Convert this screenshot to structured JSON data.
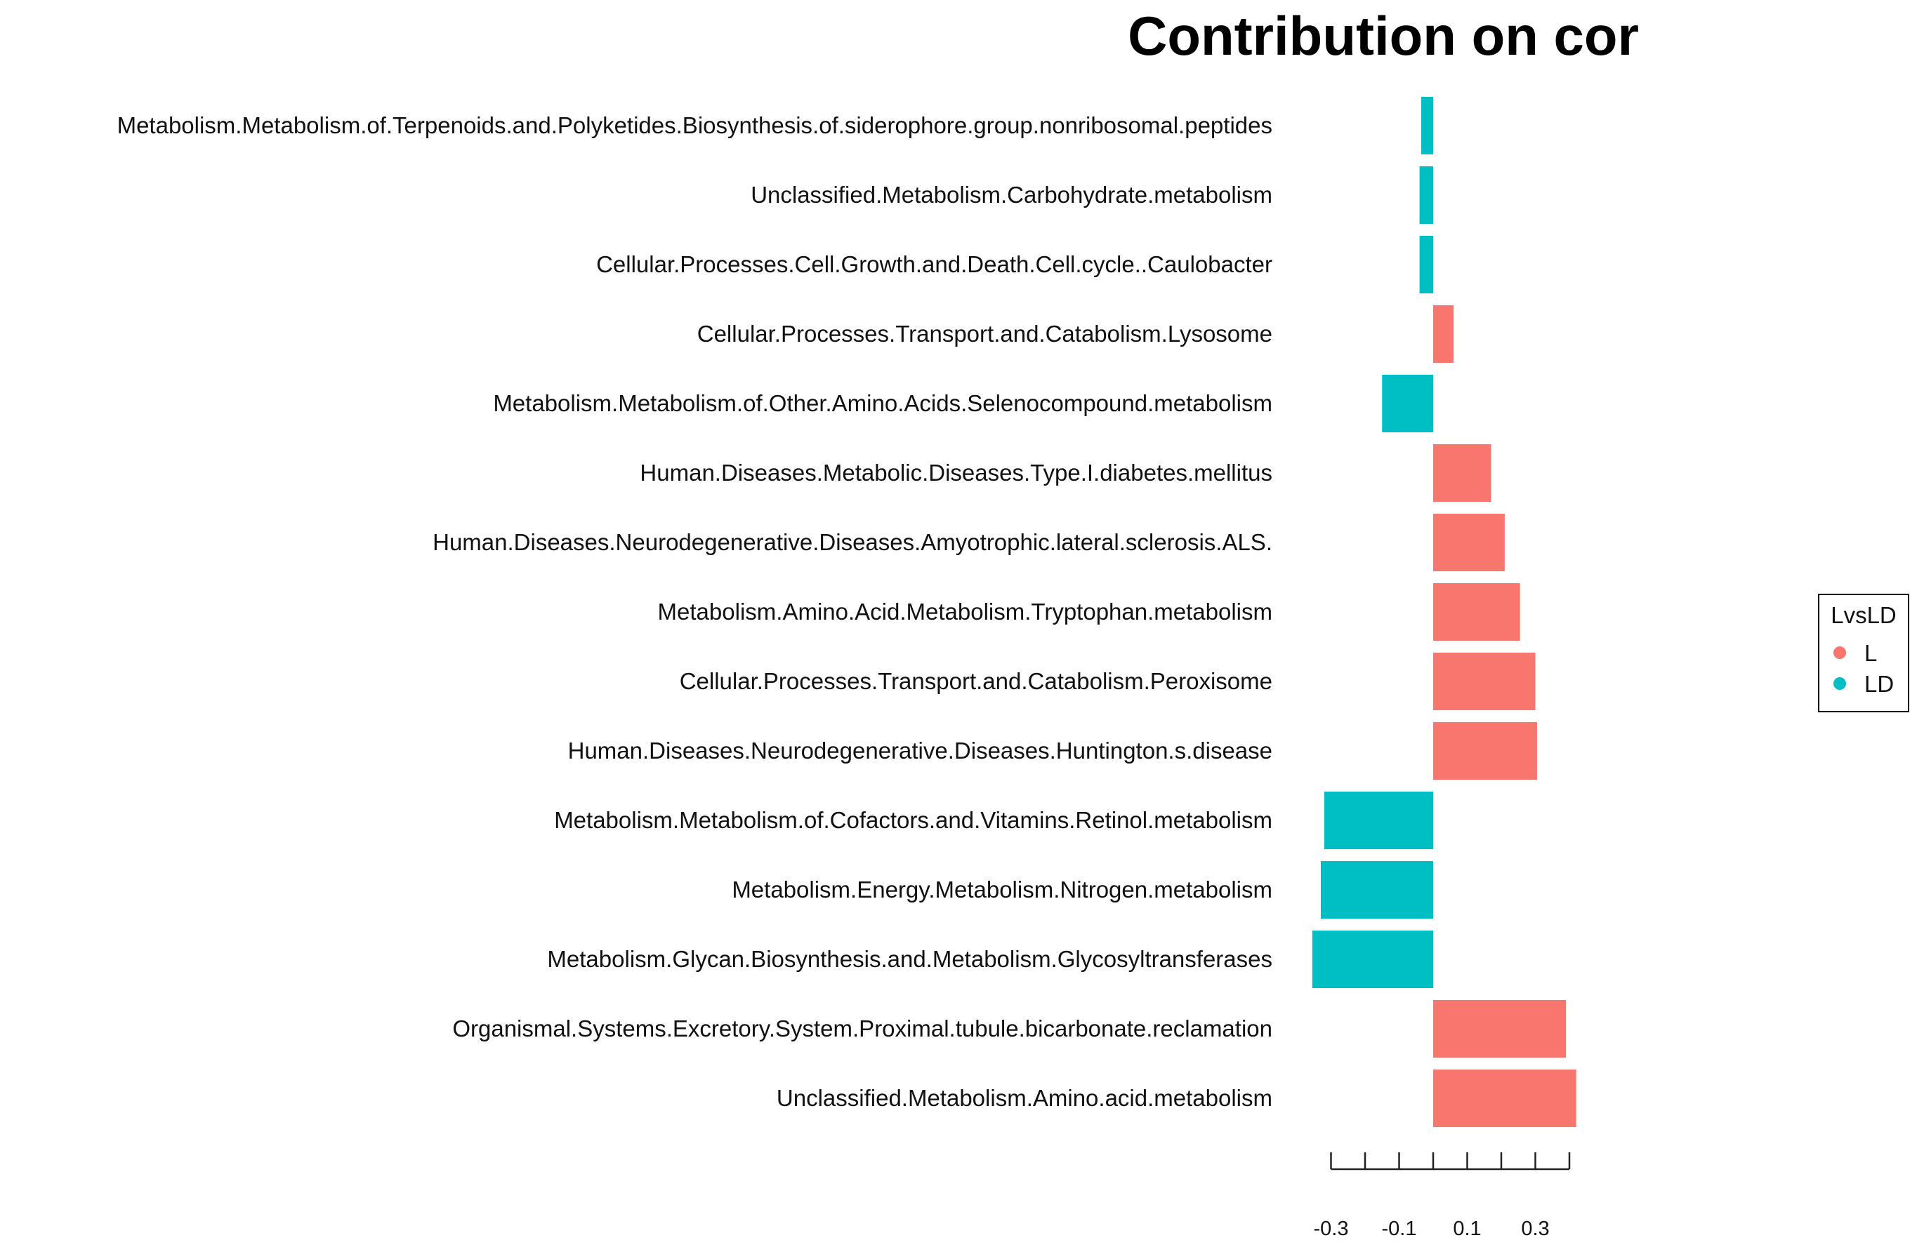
{
  "chart_data": {
    "type": "bar",
    "orientation": "horizontal",
    "title": "Contribution on cor",
    "xlabel": "",
    "ylabel": "",
    "xlim": [
      -0.32,
      0.4
    ],
    "ticks": [
      -0.3,
      -0.2,
      -0.1,
      0.0,
      0.1,
      0.2,
      0.3,
      0.4
    ],
    "tick_labels": [
      {
        "value": -0.3,
        "label": "-0.3"
      },
      {
        "value": -0.1,
        "label": "-0.1"
      },
      {
        "value": 0.1,
        "label": "0.1"
      },
      {
        "value": 0.3,
        "label": "0.3"
      }
    ],
    "categories": [
      "Metabolism.Metabolism.of.Terpenoids.and.Polyketides.Biosynthesis.of.siderophore.group.nonribosomal.peptides",
      "Unclassified.Metabolism.Carbohydrate.metabolism",
      "Cellular.Processes.Cell.Growth.and.Death.Cell.cycle..Caulobacter",
      "Cellular.Processes.Transport.and.Catabolism.Lysosome",
      "Metabolism.Metabolism.of.Other.Amino.Acids.Selenocompound.metabolism",
      "Human.Diseases.Metabolic.Diseases.Type.I.diabetes.mellitus",
      "Human.Diseases.Neurodegenerative.Diseases.Amyotrophic.lateral.sclerosis.ALS.",
      "Metabolism.Amino.Acid.Metabolism.Tryptophan.metabolism",
      "Cellular.Processes.Transport.and.Catabolism.Peroxisome",
      "Human.Diseases.Neurodegenerative.Diseases.Huntington.s.disease",
      "Metabolism.Metabolism.of.Cofactors.and.Vitamins.Retinol.metabolism",
      "Metabolism.Energy.Metabolism.Nitrogen.metabolism",
      "Metabolism.Glycan.Biosynthesis.and.Metabolism.Glycosyltransferases",
      "Organismal.Systems.Excretory.System.Proximal.tubule.bicarbonate.reclamation",
      "Unclassified.Metabolism.Amino.acid.metabolism"
    ],
    "values": [
      -0.035,
      -0.04,
      -0.04,
      0.06,
      -0.15,
      0.17,
      0.21,
      0.255,
      0.3,
      0.305,
      -0.32,
      -0.33,
      -0.355,
      0.39,
      0.42
    ],
    "groups": [
      "LD",
      "LD",
      "LD",
      "L",
      "LD",
      "L",
      "L",
      "L",
      "L",
      "L",
      "LD",
      "LD",
      "LD",
      "L",
      "L"
    ],
    "legend": {
      "title": "LvsLD",
      "position": "right",
      "entries": [
        {
          "label": "L",
          "color": "#F8766D"
        },
        {
          "label": "LD",
          "color": "#00BFC4"
        }
      ]
    },
    "colors": {
      "L": "#F8766D",
      "LD": "#00BFC4"
    }
  }
}
